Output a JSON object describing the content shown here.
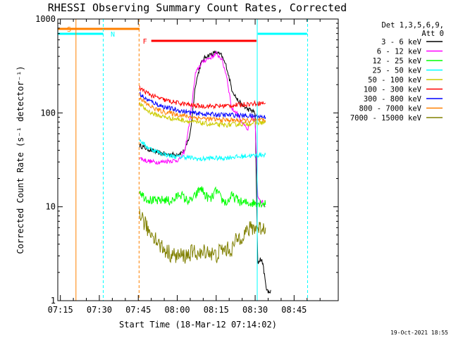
{
  "chart_data": {
    "type": "line",
    "title": "RHESSI Observing Summary Count Rates, Corrected",
    "xlabel": "Start Time (18-Mar-12 07:14:02)",
    "ylabel": "Corrected Count Rate (s⁻¹ detector⁻¹)",
    "yscale": "log",
    "ylim": [
      1,
      1000
    ],
    "xlim": [
      434,
      542
    ],
    "x_units": "minutes after 00:00 UT",
    "x_ticks": [
      {
        "value": 435,
        "label": "07:15"
      },
      {
        "value": 450,
        "label": "07:30"
      },
      {
        "value": 465,
        "label": "07:45"
      },
      {
        "value": 480,
        "label": "08:00"
      },
      {
        "value": 495,
        "label": "08:15"
      },
      {
        "value": 510,
        "label": "08:30"
      },
      {
        "value": 525,
        "label": "08:45"
      }
    ],
    "y_ticks": [
      {
        "value": 1,
        "label": "1"
      },
      {
        "value": 10,
        "label": "10"
      },
      {
        "value": 100,
        "label": "100"
      },
      {
        "value": 1000,
        "label": "1000"
      }
    ],
    "legend_header": [
      "Det 1,3,5,6,9,",
      "Att 0"
    ],
    "series": [
      {
        "name": "3 - 6 keV",
        "color": "#000000",
        "x": [
          465.5,
          468,
          471,
          474,
          477,
          479,
          481,
          483,
          485,
          487,
          489,
          491,
          493,
          495,
          497,
          499,
          501,
          503,
          505,
          507,
          509,
          510,
          511,
          512,
          513,
          514,
          515,
          516
        ],
        "y": [
          45,
          42,
          39,
          37,
          36,
          36,
          37,
          40,
          60,
          200,
          330,
          400,
          420,
          440,
          410,
          310,
          180,
          140,
          120,
          110,
          105,
          100,
          2.5,
          2.8,
          2.5,
          1.5,
          1.2,
          1.3
        ]
      },
      {
        "name": "6 - 12 keV",
        "color": "#ff00ff",
        "x": [
          465.5,
          468,
          471,
          474,
          477,
          479,
          481,
          483,
          485,
          487,
          489,
          491,
          493,
          495,
          497,
          499,
          501,
          503,
          505,
          507,
          509,
          510,
          511,
          512,
          513,
          514
        ],
        "y": [
          33,
          31,
          30,
          30,
          31,
          31,
          32,
          40,
          90,
          260,
          330,
          370,
          390,
          430,
          380,
          250,
          110,
          100,
          80,
          65,
          90,
          80,
          13,
          12,
          11,
          10
        ]
      },
      {
        "name": "12 - 25 keV",
        "color": "#00ff00",
        "x": [
          465.5,
          467,
          469,
          471,
          473,
          475,
          477,
          479,
          481,
          483,
          485,
          487,
          489,
          491,
          493,
          495,
          497,
          499,
          501,
          503,
          505,
          507,
          509,
          510,
          511,
          512,
          513,
          514
        ],
        "y": [
          15,
          13,
          12,
          11.5,
          11.5,
          12,
          11.5,
          12,
          14,
          12,
          11.5,
          13,
          16,
          13,
          12,
          15,
          12,
          11,
          13,
          12,
          11,
          11,
          11,
          11,
          11,
          11,
          11,
          10.5
        ]
      },
      {
        "name": "25 - 50 keV",
        "color": "#00ffff",
        "x": [
          465.5,
          468,
          471,
          474,
          477,
          480,
          483,
          486,
          489,
          492,
          495,
          498,
          501,
          504,
          507,
          510,
          513,
          514
        ],
        "y": [
          52,
          44,
          40,
          37,
          35,
          34,
          34,
          33,
          32,
          33,
          33,
          33,
          34,
          34,
          35,
          35,
          36,
          36
        ]
      },
      {
        "name": "50 - 100 keV",
        "color": "#cccc00",
        "x": [
          465.5,
          468,
          471,
          474,
          477,
          480,
          483,
          486,
          489,
          492,
          495,
          498,
          501,
          504,
          507,
          510,
          513,
          514
        ],
        "y": [
          125,
          108,
          97,
          92,
          88,
          86,
          83,
          80,
          78,
          76,
          75,
          74,
          75,
          76,
          77,
          78,
          79,
          79
        ]
      },
      {
        "name": "100 - 300 keV",
        "color": "#ff0000",
        "x": [
          465.5,
          468,
          471,
          474,
          477,
          480,
          483,
          486,
          489,
          492,
          495,
          498,
          501,
          504,
          507,
          510,
          513,
          514
        ],
        "y": [
          185,
          165,
          150,
          140,
          133,
          128,
          124,
          120,
          118,
          118,
          118,
          119,
          120,
          122,
          124,
          126,
          127,
          127
        ]
      },
      {
        "name": "300 - 800 keV",
        "color": "#0000ff",
        "x": [
          465.5,
          468,
          471,
          474,
          477,
          480,
          483,
          486,
          489,
          492,
          495,
          498,
          501,
          504,
          507,
          510,
          513,
          514
        ],
        "y": [
          160,
          140,
          128,
          118,
          112,
          107,
          103,
          100,
          98,
          97,
          96,
          95,
          95,
          94,
          93,
          92,
          91,
          90
        ]
      },
      {
        "name": "800 - 7000 keV",
        "color": "#ff8000",
        "x": [
          465.5,
          468,
          471,
          474,
          477,
          480,
          483,
          486,
          489,
          492,
          495,
          498,
          501,
          504,
          507,
          510,
          513,
          514
        ],
        "y": [
          148,
          125,
          112,
          104,
          100,
          96,
          93,
          90,
          88,
          86,
          85,
          84,
          84,
          83,
          83,
          83,
          83,
          82
        ]
      },
      {
        "name": "7000 - 15000 keV",
        "color": "#808000",
        "x": [
          465.5,
          467,
          469,
          471,
          473,
          475,
          477,
          479,
          481,
          483,
          485,
          487,
          489,
          491,
          493,
          495,
          497,
          499,
          501,
          503,
          505,
          507,
          509,
          510,
          511,
          512,
          513,
          514
        ],
        "y": [
          9,
          7,
          5.5,
          5,
          4,
          3.5,
          3.2,
          3,
          3,
          3,
          3.2,
          3.3,
          3,
          3.5,
          3.2,
          3,
          3.5,
          3.5,
          3.5,
          4.5,
          5,
          5.5,
          6,
          6,
          6,
          6,
          6,
          6
        ]
      }
    ],
    "flags": [
      {
        "label": "S",
        "color": "#ff8000",
        "x_start": 434,
        "x_end": 465.5,
        "level": "upper"
      },
      {
        "label": "N",
        "color": "#00ffff",
        "x_start": 434,
        "x_end": 451.5,
        "level": "lower"
      },
      {
        "label": "F",
        "color": "#ff0000",
        "x_start": 470,
        "x_end": 510.5,
        "level": "middle"
      },
      {
        "label": "",
        "color": "#00ffff",
        "x_start": 511,
        "x_end": 530,
        "level": "lower"
      }
    ],
    "vertical_lines": [
      {
        "x": 441,
        "color": "#ff8000",
        "style": "solid"
      },
      {
        "x": 451.5,
        "color": "#00ffff",
        "style": "dashed"
      },
      {
        "x": 465.3,
        "color": "#ff8000",
        "style": "dashed"
      },
      {
        "x": 510.8,
        "color": "#00ffff",
        "style": "solid"
      },
      {
        "x": 530.2,
        "color": "#00ffff",
        "style": "dashed"
      }
    ]
  },
  "timestamp": "19-Oct-2021 18:55"
}
